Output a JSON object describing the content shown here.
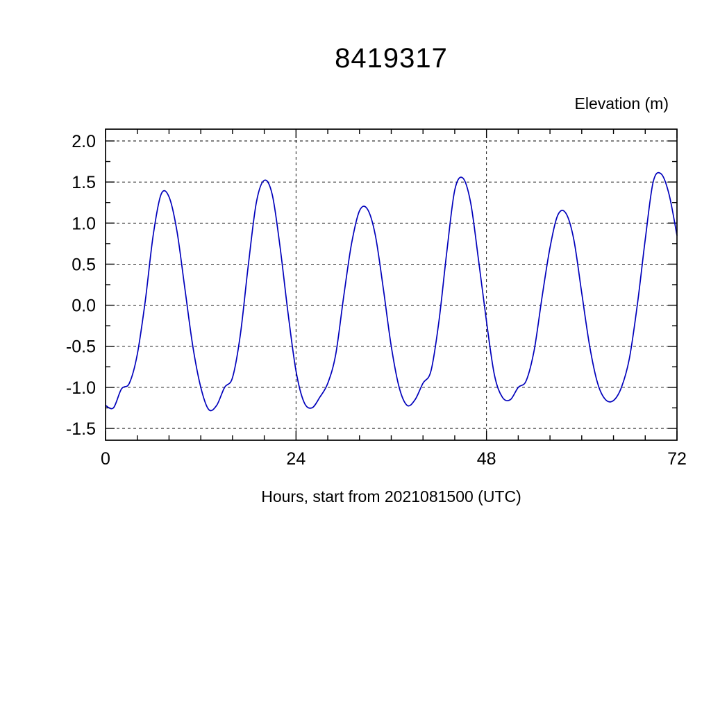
{
  "chart_data": {
    "type": "line",
    "title": "8419317",
    "ylabel": "Elevation (m)",
    "xlabel": "Hours, start from 2021081500 (UTC)",
    "xlim": [
      0,
      72
    ],
    "ylim": [
      -1.5,
      2.0
    ],
    "xticks": [
      0,
      24,
      48,
      72
    ],
    "yticks": [
      2.0,
      1.5,
      1.0,
      0.5,
      0.0,
      -0.5,
      -1.0,
      -1.5
    ],
    "x_minor_step": 4,
    "y_minor_step": 0.25,
    "grid": true,
    "grid_x_values": [
      24,
      48
    ],
    "legend": "none",
    "line_color": "#0000bb",
    "frame_color": "#000000",
    "grid_color": "#000000",
    "series": [
      {
        "name": "tidal-elevation",
        "x": [
          0,
          1,
          2,
          3,
          4,
          5,
          6,
          7,
          8,
          9,
          10,
          11,
          12,
          13,
          14,
          15,
          16,
          17,
          18,
          19,
          20,
          21,
          22,
          23,
          24,
          25,
          26,
          27,
          28,
          29,
          30,
          31,
          32,
          33,
          34,
          35,
          36,
          37,
          38,
          39,
          40,
          41,
          42,
          43,
          44,
          45,
          46,
          47,
          48,
          49,
          50,
          51,
          52,
          53,
          54,
          55,
          56,
          57,
          58,
          59,
          60,
          61,
          62,
          63,
          64,
          65,
          66,
          67,
          68,
          69,
          70,
          71,
          72
        ],
        "y": [
          -1.22,
          -1.25,
          -1.02,
          -0.95,
          -0.6,
          0.05,
          0.85,
          1.35,
          1.32,
          0.9,
          0.2,
          -0.5,
          -1.0,
          -1.27,
          -1.22,
          -1.0,
          -0.88,
          -0.35,
          0.5,
          1.25,
          1.52,
          1.35,
          0.7,
          -0.1,
          -0.8,
          -1.18,
          -1.25,
          -1.12,
          -0.95,
          -0.6,
          0.1,
          0.75,
          1.15,
          1.17,
          0.85,
          0.2,
          -0.5,
          -1.0,
          -1.22,
          -1.15,
          -0.95,
          -0.8,
          -0.2,
          0.65,
          1.4,
          1.55,
          1.25,
          0.55,
          -0.2,
          -0.85,
          -1.12,
          -1.15,
          -1.0,
          -0.92,
          -0.55,
          0.1,
          0.7,
          1.1,
          1.12,
          0.8,
          0.15,
          -0.5,
          -0.95,
          -1.15,
          -1.16,
          -1.0,
          -0.65,
          0.0,
          0.8,
          1.5,
          1.6,
          1.35,
          0.85
        ]
      }
    ]
  }
}
